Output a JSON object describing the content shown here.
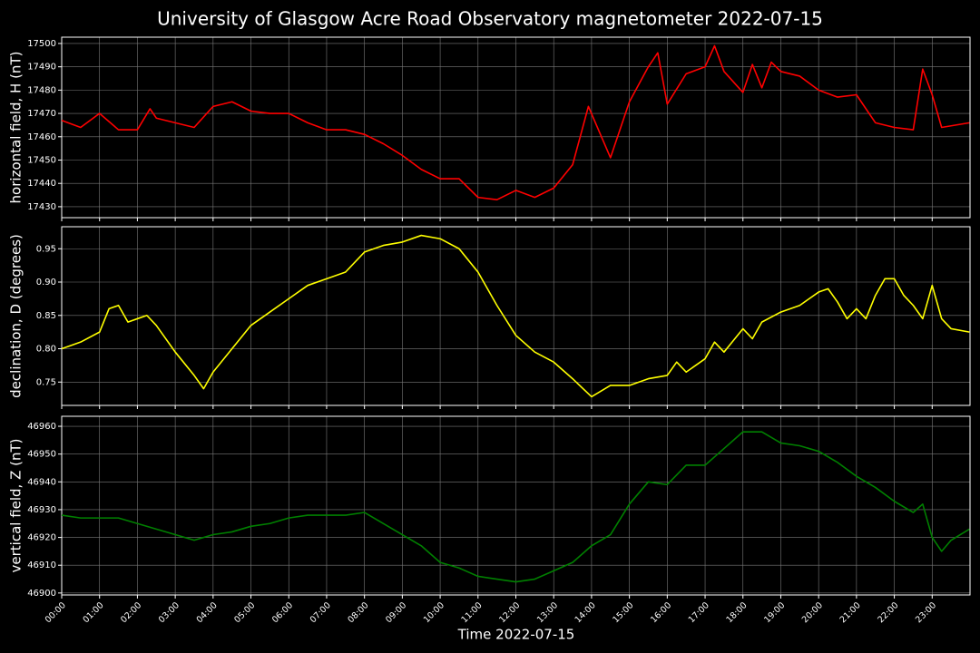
{
  "title": "University of Glasgow Acre Road Observatory magnetometer 2022-07-15",
  "chart_data": [
    {
      "type": "line",
      "ylabel": "horizontal field, H (nT)",
      "grid": true,
      "show_xtick_labels": false,
      "xlim": [
        "00:00",
        "24:00"
      ],
      "xticks": [
        "00:00",
        "01:00",
        "02:00",
        "03:00",
        "04:00",
        "05:00",
        "06:00",
        "07:00",
        "08:00",
        "09:00",
        "10:00",
        "11:00",
        "12:00",
        "13:00",
        "14:00",
        "15:00",
        "16:00",
        "17:00",
        "18:00",
        "19:00",
        "20:00",
        "21:00",
        "22:00",
        "23:00"
      ],
      "ylim": [
        17425.3,
        17502.7
      ],
      "yticks": [
        17430,
        17440,
        17450,
        17460,
        17470,
        17480,
        17490,
        17500
      ],
      "x": [
        "00:00",
        "00:30",
        "01:00",
        "01:30",
        "02:00",
        "02:20",
        "02:30",
        "03:00",
        "03:30",
        "04:00",
        "04:30",
        "05:00",
        "05:30",
        "06:00",
        "06:30",
        "07:00",
        "07:30",
        "08:00",
        "08:30",
        "09:00",
        "09:30",
        "10:00",
        "10:30",
        "11:00",
        "11:30",
        "12:00",
        "12:30",
        "13:00",
        "13:30",
        "13:55",
        "14:30",
        "15:00",
        "15:30",
        "15:45",
        "16:00",
        "16:30",
        "17:00",
        "17:15",
        "17:30",
        "18:00",
        "18:15",
        "18:30",
        "18:45",
        "19:00",
        "19:30",
        "20:00",
        "20:30",
        "21:00",
        "21:30",
        "22:00",
        "22:30",
        "22:45",
        "23:00",
        "23:15",
        "23:59"
      ],
      "series": [
        {
          "name": "H",
          "color": "#ff0000",
          "values": [
            17467,
            17464,
            17470,
            17463,
            17463,
            17472,
            17468,
            17466,
            17464,
            17473,
            17475,
            17471,
            17470,
            17470,
            17466,
            17463,
            17463,
            17461,
            17457,
            17452,
            17446,
            17442,
            17442,
            17434,
            17433,
            17437,
            17434,
            17438,
            17448,
            17473,
            17451,
            17475,
            17490,
            17496,
            17474,
            17487,
            17490,
            17499,
            17488,
            17479,
            17491,
            17481,
            17492,
            17488,
            17486,
            17480,
            17477,
            17478,
            17466,
            17464,
            17463,
            17489,
            17478,
            17464,
            17466
          ]
        }
      ]
    },
    {
      "type": "line",
      "ylabel": "declination, D (degrees)",
      "grid": true,
      "show_xtick_labels": false,
      "xlim": [
        "00:00",
        "24:00"
      ],
      "xticks": [
        "00:00",
        "01:00",
        "02:00",
        "03:00",
        "04:00",
        "05:00",
        "06:00",
        "07:00",
        "08:00",
        "09:00",
        "10:00",
        "11:00",
        "12:00",
        "13:00",
        "14:00",
        "15:00",
        "16:00",
        "17:00",
        "18:00",
        "19:00",
        "20:00",
        "21:00",
        "22:00",
        "23:00"
      ],
      "ylim": [
        0.715,
        0.983
      ],
      "yticks": [
        0.75,
        {
          "value": 0.8,
          "label": "0.80"
        },
        0.85,
        {
          "value": 0.9,
          "label": "0.90"
        },
        0.95
      ],
      "x": [
        "00:00",
        "00:30",
        "01:00",
        "01:15",
        "01:30",
        "01:45",
        "02:00",
        "02:15",
        "02:30",
        "03:00",
        "03:30",
        "03:45",
        "04:00",
        "04:30",
        "05:00",
        "05:30",
        "06:00",
        "06:30",
        "07:00",
        "07:30",
        "08:00",
        "08:30",
        "09:00",
        "09:30",
        "10:00",
        "10:30",
        "11:00",
        "11:30",
        "12:00",
        "12:30",
        "13:00",
        "13:30",
        "14:00",
        "14:30",
        "15:00",
        "15:30",
        "16:00",
        "16:15",
        "16:30",
        "17:00",
        "17:15",
        "17:30",
        "18:00",
        "18:15",
        "18:30",
        "19:00",
        "19:30",
        "20:00",
        "20:15",
        "20:30",
        "20:45",
        "21:00",
        "21:15",
        "21:30",
        "21:45",
        "22:00",
        "22:15",
        "22:30",
        "22:45",
        "23:00",
        "23:15",
        "23:30",
        "23:59"
      ],
      "series": [
        {
          "name": "D",
          "color": "#ffff00",
          "values": [
            0.8,
            0.81,
            0.825,
            0.86,
            0.865,
            0.84,
            0.845,
            0.85,
            0.835,
            0.795,
            0.76,
            0.74,
            0.765,
            0.8,
            0.835,
            0.855,
            0.875,
            0.895,
            0.905,
            0.915,
            0.945,
            0.955,
            0.96,
            0.97,
            0.965,
            0.95,
            0.915,
            0.865,
            0.82,
            0.795,
            0.78,
            0.755,
            0.728,
            0.745,
            0.745,
            0.755,
            0.76,
            0.78,
            0.765,
            0.785,
            0.81,
            0.795,
            0.83,
            0.815,
            0.84,
            0.855,
            0.865,
            0.885,
            0.89,
            0.87,
            0.845,
            0.86,
            0.845,
            0.88,
            0.905,
            0.905,
            0.88,
            0.865,
            0.845,
            0.895,
            0.845,
            0.83,
            0.825
          ]
        }
      ]
    },
    {
      "type": "line",
      "ylabel": "vertical field, Z (nT)",
      "xlabel": "Time 2022-07-15",
      "grid": true,
      "show_xtick_labels": true,
      "xlim": [
        "00:00",
        "24:00"
      ],
      "xticks": [
        "00:00",
        "01:00",
        "02:00",
        "03:00",
        "04:00",
        "05:00",
        "06:00",
        "07:00",
        "08:00",
        "09:00",
        "10:00",
        "11:00",
        "12:00",
        "13:00",
        "14:00",
        "15:00",
        "16:00",
        "17:00",
        "18:00",
        "19:00",
        "20:00",
        "21:00",
        "22:00",
        "23:00"
      ],
      "ylim": [
        46899.3,
        46963.6
      ],
      "yticks": [
        46900,
        46910,
        46920,
        46930,
        46940,
        46950,
        46960
      ],
      "x": [
        "00:00",
        "00:30",
        "01:00",
        "01:30",
        "02:00",
        "02:30",
        "03:00",
        "03:30",
        "04:00",
        "04:30",
        "05:00",
        "05:30",
        "06:00",
        "06:30",
        "07:00",
        "07:30",
        "08:00",
        "08:30",
        "09:00",
        "09:30",
        "10:00",
        "10:30",
        "11:00",
        "11:30",
        "12:00",
        "12:30",
        "13:00",
        "13:30",
        "14:00",
        "14:30",
        "15:00",
        "15:30",
        "16:00",
        "16:30",
        "17:00",
        "17:30",
        "18:00",
        "18:30",
        "19:00",
        "19:30",
        "20:00",
        "20:30",
        "21:00",
        "21:30",
        "22:00",
        "22:30",
        "22:45",
        "23:00",
        "23:15",
        "23:30",
        "23:59"
      ],
      "series": [
        {
          "name": "Z",
          "color": "#008000",
          "values": [
            46928,
            46927,
            46927,
            46927,
            46925,
            46923,
            46921,
            46919,
            46921,
            46922,
            46924,
            46925,
            46927,
            46928,
            46928,
            46928,
            46929,
            46925,
            46921,
            46917,
            46911,
            46909,
            46906,
            46905,
            46904,
            46905,
            46908,
            46911,
            46917,
            46921,
            46932,
            46940,
            46939,
            46946,
            46946,
            46952,
            46958,
            46958,
            46954,
            46953,
            46951,
            46947,
            46942,
            46938,
            46933,
            46929,
            46932,
            46920,
            46915,
            46919,
            46923
          ]
        }
      ]
    }
  ]
}
